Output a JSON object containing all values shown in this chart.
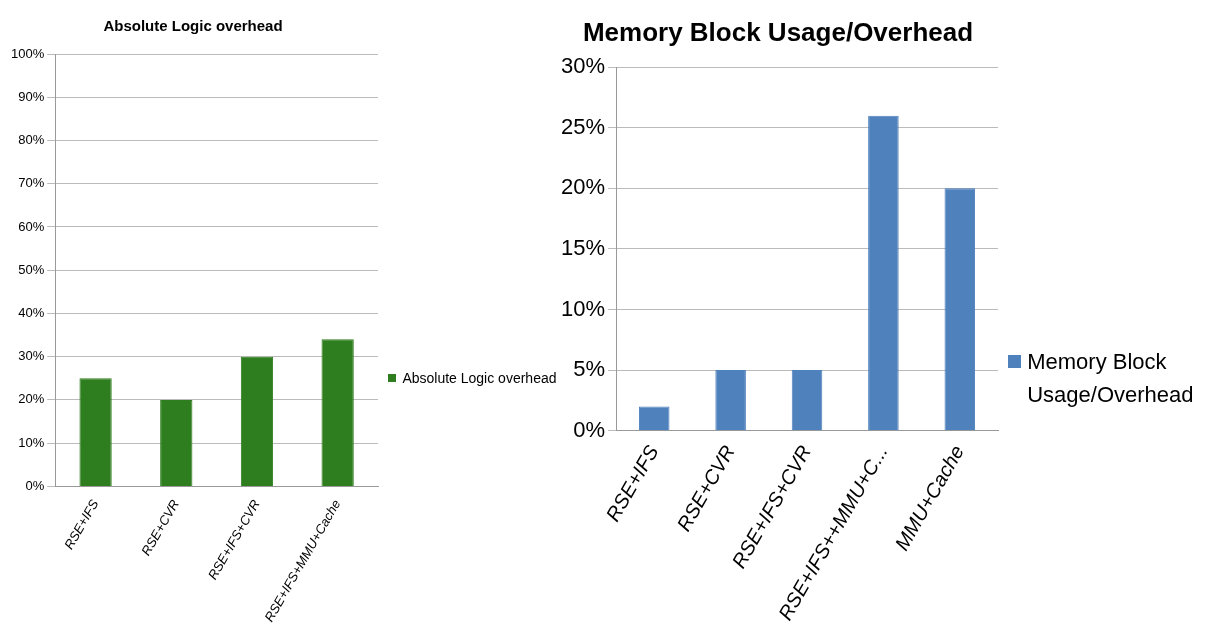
{
  "chart_data": [
    {
      "type": "bar",
      "title": "Absolute Logic overhead",
      "categories": [
        "RSE+IFS",
        "RSE+CVR",
        "RSE+IFS+CVR",
        "RSE+IFS+MMU+Cache"
      ],
      "series": [
        {
          "name": "Absolute Logic overhead",
          "color": "#2e7d1e",
          "values": [
            25,
            20,
            30,
            34
          ]
        }
      ],
      "ylim": [
        0,
        100
      ],
      "yticks": [
        {
          "value": 0,
          "label": "0%"
        },
        {
          "value": 10,
          "label": "10%"
        },
        {
          "value": 20,
          "label": "20%"
        },
        {
          "value": 30,
          "label": "30%"
        },
        {
          "value": 40,
          "label": "40%"
        },
        {
          "value": 50,
          "label": "50%"
        },
        {
          "value": 60,
          "label": "60%"
        },
        {
          "value": 70,
          "label": "70%"
        },
        {
          "value": 80,
          "label": "80%"
        },
        {
          "value": 90,
          "label": "90%"
        },
        {
          "value": 100,
          "label": "100%"
        }
      ],
      "grid": "y",
      "legend": "right"
    },
    {
      "type": "bar",
      "title": "Memory Block Usage/Overhead",
      "categories": [
        "RSE+IFS",
        "RSE+CVR",
        "RSE+IFS+CVR",
        "RSE+IFS++MMU+C...",
        "MMU+Cache"
      ],
      "series": [
        {
          "name": "Memory Block Usage/Overhead",
          "color": "#4f81bd",
          "values": [
            2,
            5,
            5,
            26,
            20
          ]
        }
      ],
      "ylim": [
        0,
        30
      ],
      "yticks": [
        {
          "value": 0,
          "label": "0%"
        },
        {
          "value": 5,
          "label": "5%"
        },
        {
          "value": 10,
          "label": "10%"
        },
        {
          "value": 15,
          "label": "15%"
        },
        {
          "value": 20,
          "label": "20%"
        },
        {
          "value": 25,
          "label": "25%"
        },
        {
          "value": 30,
          "label": "30%"
        }
      ],
      "grid": "y",
      "legend": "right"
    }
  ]
}
